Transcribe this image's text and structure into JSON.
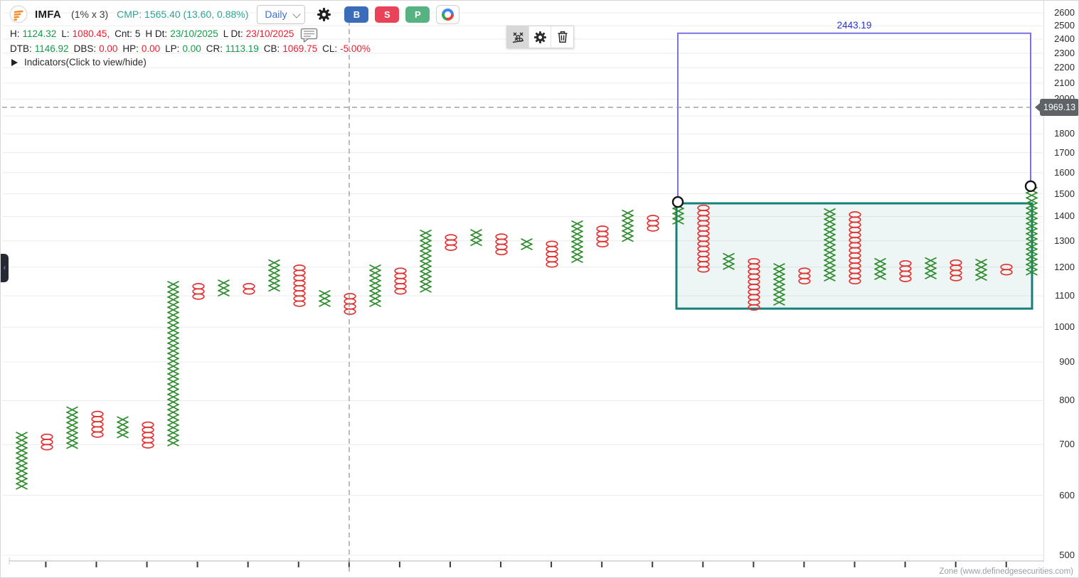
{
  "header": {
    "symbol": "IMFA",
    "box_spec": "(1% x 3)",
    "cmp": "CMP: 1565.40 (13.60, 0.88%)",
    "timeframe": "Daily",
    "buy_label": "B",
    "sell_label": "S",
    "p_label": "P",
    "stats1": [
      {
        "label": "H:",
        "value": "1124.32",
        "color": "g"
      },
      {
        "label": "L:",
        "value": "1080.45,",
        "color": "r"
      },
      {
        "label": "Cnt:",
        "value": "5",
        "color": "d"
      },
      {
        "label": "H Dt:",
        "value": "23/10/2025",
        "color": "g"
      },
      {
        "label": "L Dt:",
        "value": "23/10/2025",
        "color": "r"
      }
    ],
    "stats2": [
      {
        "label": "DTB:",
        "value": "1146.92",
        "color": "g"
      },
      {
        "label": "DBS:",
        "value": "0.00",
        "color": "r"
      },
      {
        "label": "HP:",
        "value": "0.00",
        "color": "r"
      },
      {
        "label": "LP:",
        "value": "0.00",
        "color": "g"
      },
      {
        "label": "CR:",
        "value": "1113.19",
        "color": "g"
      },
      {
        "label": "CB:",
        "value": "1069.75",
        "color": "r"
      },
      {
        "label": "CL:",
        "value": "-5.00%",
        "color": "r"
      }
    ],
    "indicators_label": "Indicators(Click to view/hide)"
  },
  "floating_toolbar": {
    "buttons": [
      "xo-chart-mode",
      "settings",
      "delete-drawing"
    ]
  },
  "axis": {
    "marker_label": "1969.13"
  },
  "chart_data": {
    "type": "point-and-figure",
    "symbol": "IMFA",
    "box_size_percent": 1,
    "reversal": 3,
    "scale": "log",
    "axis_prices": [
      2600,
      2500,
      2400,
      2300,
      2200,
      2100,
      2000,
      1800,
      1700,
      1600,
      1500,
      1400,
      1300,
      1200,
      1100,
      1000,
      900,
      800,
      700,
      600,
      500
    ],
    "last_price_marker": 1969.13,
    "columns": [
      {
        "t": "X",
        "hi": 726,
        "lo": 608
      },
      {
        "t": "O",
        "hi": 722,
        "lo": 688
      },
      {
        "t": "X",
        "hi": 784,
        "lo": 694
      },
      {
        "t": "O",
        "hi": 774,
        "lo": 711
      },
      {
        "t": "X",
        "hi": 761,
        "lo": 719
      },
      {
        "t": "O",
        "hi": 749,
        "lo": 688
      },
      {
        "t": "X",
        "hi": 1148,
        "lo": 699
      },
      {
        "t": "O",
        "hi": 1141,
        "lo": 1081
      },
      {
        "t": "X",
        "hi": 1153,
        "lo": 1095
      },
      {
        "t": "O",
        "hi": 1141,
        "lo": 1102
      },
      {
        "t": "X",
        "hi": 1226,
        "lo": 1112
      },
      {
        "t": "O",
        "hi": 1207,
        "lo": 1060
      },
      {
        "t": "X",
        "hi": 1117,
        "lo": 1062
      },
      {
        "t": "O",
        "hi": 1107,
        "lo": 1038
      },
      {
        "t": "X",
        "hi": 1207,
        "lo": 1060
      },
      {
        "t": "O",
        "hi": 1196,
        "lo": 1105
      },
      {
        "t": "X",
        "hi": 1342,
        "lo": 1112
      },
      {
        "t": "O",
        "hi": 1324,
        "lo": 1271
      },
      {
        "t": "X",
        "hi": 1344,
        "lo": 1288
      },
      {
        "t": "O",
        "hi": 1327,
        "lo": 1244
      },
      {
        "t": "X",
        "hi": 1307,
        "lo": 1260
      },
      {
        "t": "O",
        "hi": 1298,
        "lo": 1207
      },
      {
        "t": "X",
        "hi": 1380,
        "lo": 1218
      },
      {
        "t": "O",
        "hi": 1359,
        "lo": 1279
      },
      {
        "t": "X",
        "hi": 1426,
        "lo": 1293
      },
      {
        "t": "O",
        "hi": 1404,
        "lo": 1342
      },
      {
        "t": "X",
        "hi": 1457,
        "lo": 1359
      },
      {
        "t": "O",
        "hi": 1448,
        "lo": 1180
      },
      {
        "t": "X",
        "hi": 1250,
        "lo": 1191
      },
      {
        "t": "O",
        "hi": 1231,
        "lo": 1058
      },
      {
        "t": "X",
        "hi": 1212,
        "lo": 1071
      },
      {
        "t": "O",
        "hi": 1196,
        "lo": 1141
      },
      {
        "t": "X",
        "hi": 1432,
        "lo": 1144
      },
      {
        "t": "O",
        "hi": 1419,
        "lo": 1148
      },
      {
        "t": "X",
        "hi": 1231,
        "lo": 1156
      },
      {
        "t": "O",
        "hi": 1223,
        "lo": 1153
      },
      {
        "t": "X",
        "hi": 1234,
        "lo": 1156
      },
      {
        "t": "O",
        "hi": 1226,
        "lo": 1146
      },
      {
        "t": "X",
        "hi": 1228,
        "lo": 1153
      },
      {
        "t": "O",
        "hi": 1210,
        "lo": 1169
      },
      {
        "t": "X",
        "hi": 1528,
        "lo": 1180
      }
    ],
    "zone_box": {
      "hi": 1457,
      "lo": 1058
    },
    "annotation": {
      "label": "2443.19",
      "top_price": 2443.19,
      "left_anchor_price": 1463,
      "right_anchor_price": 1535
    },
    "crosshair_price_label": "1969.13"
  },
  "attribution": "Zone (www.definedgesecurities.com)",
  "colors": {
    "x_green": "#2e8b2e",
    "o_red": "#e23333",
    "zone_teal": "#17807a",
    "zone_fill": "rgba(23,128,122,0.08)",
    "annotation_blue": "#7b70e6",
    "annotation_label_blue": "#2a35cc",
    "value_green": "#0f9d45",
    "value_red": "#ec1c2d",
    "cmp_teal": "#2fa492",
    "grid": "#ececec",
    "crosshair": "#8f8f8f",
    "marker_bg": "#5f6366"
  }
}
